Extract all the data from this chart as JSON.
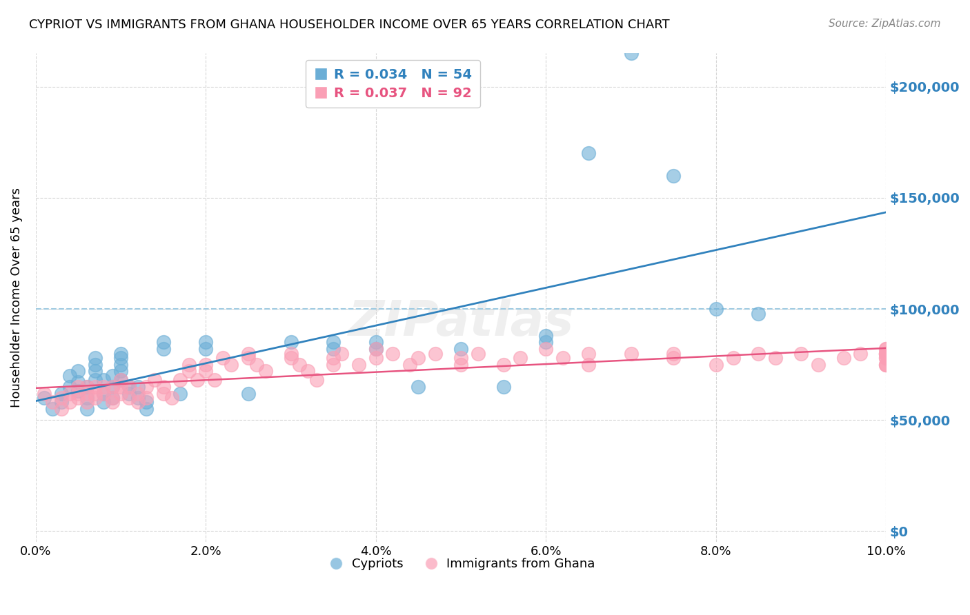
{
  "title": "CYPRIOT VS IMMIGRANTS FROM GHANA HOUSEHOLDER INCOME OVER 65 YEARS CORRELATION CHART",
  "source": "Source: ZipAtlas.com",
  "ylabel": "Householder Income Over 65 years",
  "xlabel": "",
  "xlim": [
    0.0,
    0.1
  ],
  "ylim": [
    -5000,
    215000
  ],
  "yticks": [
    0,
    50000,
    100000,
    150000,
    200000
  ],
  "ytick_labels": [
    "$0",
    "$50,000",
    "$100,000",
    "$150,000",
    "$200,000"
  ],
  "xtick_labels": [
    "0.0%",
    "2.0%",
    "4.0%",
    "6.0%",
    "8.0%",
    "10.0%"
  ],
  "xticks": [
    0.0,
    0.02,
    0.04,
    0.06,
    0.08,
    0.1
  ],
  "cypriot_color": "#6baed6",
  "ghana_color": "#fa9fb5",
  "cypriot_R": 0.034,
  "cypriot_N": 54,
  "ghana_R": 0.037,
  "ghana_N": 92,
  "cypriot_label": "Cypriots",
  "ghana_label": "Immigrants from Ghana",
  "watermark": "ZIPatlas",
  "legend_R_color": "#3182bd",
  "legend_text_color": "#3182bd",
  "right_axis_color": "#3182bd",
  "cypriot_x": [
    0.001,
    0.002,
    0.003,
    0.003,
    0.004,
    0.004,
    0.005,
    0.005,
    0.005,
    0.006,
    0.006,
    0.006,
    0.007,
    0.007,
    0.007,
    0.007,
    0.008,
    0.008,
    0.008,
    0.009,
    0.009,
    0.009,
    0.01,
    0.01,
    0.01,
    0.01,
    0.01,
    0.011,
    0.011,
    0.012,
    0.012,
    0.013,
    0.013,
    0.015,
    0.015,
    0.017,
    0.02,
    0.02,
    0.025,
    0.03,
    0.035,
    0.035,
    0.04,
    0.04,
    0.045,
    0.05,
    0.055,
    0.06,
    0.06,
    0.065,
    0.07,
    0.075,
    0.08,
    0.085
  ],
  "cypriot_y": [
    60000,
    55000,
    58000,
    62000,
    70000,
    65000,
    63000,
    67000,
    72000,
    55000,
    60000,
    65000,
    68000,
    72000,
    75000,
    78000,
    58000,
    62000,
    68000,
    60000,
    65000,
    70000,
    68000,
    72000,
    75000,
    78000,
    80000,
    62000,
    65000,
    60000,
    65000,
    55000,
    58000,
    82000,
    85000,
    62000,
    82000,
    85000,
    62000,
    85000,
    85000,
    82000,
    82000,
    85000,
    65000,
    82000,
    65000,
    85000,
    88000,
    170000,
    215000,
    160000,
    100000,
    98000
  ],
  "ghana_x": [
    0.001,
    0.002,
    0.003,
    0.003,
    0.004,
    0.004,
    0.005,
    0.005,
    0.005,
    0.006,
    0.006,
    0.006,
    0.007,
    0.007,
    0.007,
    0.008,
    0.008,
    0.009,
    0.009,
    0.009,
    0.01,
    0.01,
    0.01,
    0.011,
    0.011,
    0.012,
    0.012,
    0.013,
    0.013,
    0.014,
    0.015,
    0.015,
    0.016,
    0.017,
    0.018,
    0.018,
    0.019,
    0.02,
    0.02,
    0.021,
    0.022,
    0.023,
    0.025,
    0.025,
    0.026,
    0.027,
    0.03,
    0.03,
    0.031,
    0.032,
    0.033,
    0.035,
    0.035,
    0.036,
    0.038,
    0.04,
    0.04,
    0.042,
    0.044,
    0.045,
    0.047,
    0.05,
    0.05,
    0.052,
    0.055,
    0.057,
    0.06,
    0.062,
    0.065,
    0.065,
    0.07,
    0.075,
    0.075,
    0.08,
    0.082,
    0.085,
    0.087,
    0.09,
    0.092,
    0.095,
    0.097,
    0.1,
    0.1,
    0.1,
    0.1,
    0.1,
    0.1,
    0.1,
    0.1,
    0.1,
    0.1,
    0.1
  ],
  "ghana_y": [
    62000,
    58000,
    55000,
    60000,
    62000,
    58000,
    62000,
    65000,
    60000,
    58000,
    62000,
    65000,
    60000,
    62000,
    65000,
    62000,
    65000,
    58000,
    60000,
    65000,
    62000,
    65000,
    68000,
    60000,
    65000,
    58000,
    62000,
    60000,
    65000,
    68000,
    62000,
    65000,
    60000,
    68000,
    72000,
    75000,
    68000,
    75000,
    72000,
    68000,
    78000,
    75000,
    80000,
    78000,
    75000,
    72000,
    78000,
    80000,
    75000,
    72000,
    68000,
    78000,
    75000,
    80000,
    75000,
    82000,
    78000,
    80000,
    75000,
    78000,
    80000,
    75000,
    78000,
    80000,
    75000,
    78000,
    82000,
    78000,
    80000,
    75000,
    80000,
    78000,
    80000,
    75000,
    78000,
    80000,
    78000,
    80000,
    75000,
    78000,
    80000,
    75000,
    78000,
    80000,
    82000,
    80000,
    78000,
    75000,
    80000,
    82000,
    75000,
    80000
  ]
}
